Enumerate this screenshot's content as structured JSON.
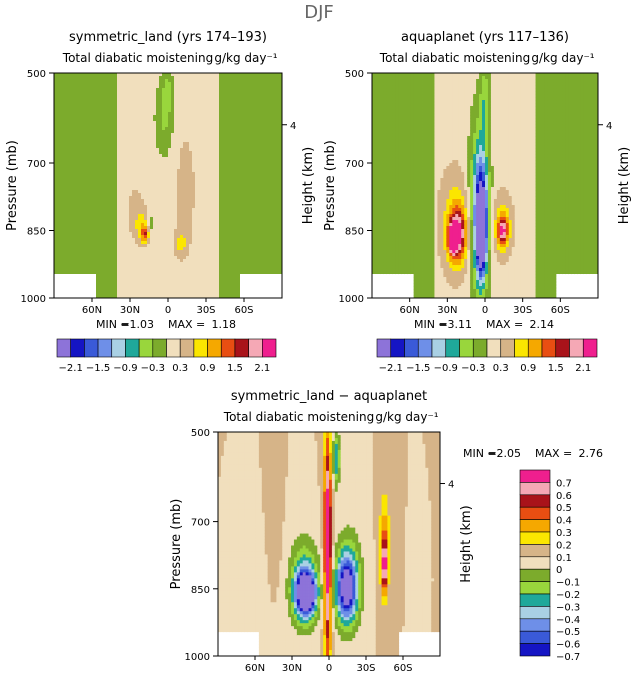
{
  "figure_title": "DJF",
  "chart_data": [
    {
      "type": "heatmap",
      "title": "symmetric_land (yrs 174–193)",
      "subtitle": "Total diabatic moistening",
      "units": "g/kg day⁻¹",
      "ylabel": "Pressure (mb)",
      "y2label": "Height (km)",
      "yticks": [
        "500",
        "700",
        "850",
        "1000"
      ],
      "y2ticks": [
        "4"
      ],
      "xticks": [
        "60N",
        "30N",
        "0",
        "30S",
        "60S"
      ],
      "stats": {
        "min_label": "MIN =",
        "min": "−1.03",
        "max_label": "MAX =",
        "max": "1.18"
      },
      "levels": [
        "−2.1",
        "−1.5",
        "−0.9",
        "−0.3",
        "0.3",
        "0.9",
        "1.5",
        "2.1"
      ],
      "blobs": [
        {
          "x": 26,
          "p": 800,
          "rx": 9,
          "rp": 75,
          "value": 0.2
        },
        {
          "x": 20,
          "p": 840,
          "rx": 6,
          "rp": 35,
          "value": 0.6
        },
        {
          "x": 18,
          "p": 860,
          "rx": 3,
          "rp": 18,
          "value": 1.0
        },
        {
          "x": 14,
          "p": 840,
          "rx": 3,
          "rp": 40,
          "value": -0.4
        },
        {
          "x": -14,
          "p": 760,
          "rx": 8,
          "rp": 130,
          "value": 0.3
        },
        {
          "x": -10,
          "p": 880,
          "rx": 5,
          "rp": 30,
          "value": 0.5
        },
        {
          "x": 3,
          "p": 600,
          "rx": 7,
          "rp": 80,
          "value": -0.5
        },
        {
          "x": 0,
          "p": 540,
          "rx": 4,
          "rp": 40,
          "value": -0.5
        }
      ]
    },
    {
      "type": "heatmap",
      "title": "aquaplanet (yrs 117–136)",
      "subtitle": "Total diabatic moistening",
      "units": "g/kg day⁻¹",
      "ylabel": "Pressure (mb)",
      "y2label": "Height (km)",
      "yticks": [
        "500",
        "700",
        "850",
        "1000"
      ],
      "y2ticks": [
        "4"
      ],
      "xticks": [
        "60N",
        "30N",
        "0",
        "30S",
        "60S"
      ],
      "stats": {
        "min_label": "MIN =",
        "min": "−3.11",
        "max_label": "MAX =",
        "max": "2.14"
      },
      "levels": [
        "−2.1",
        "−1.5",
        "−0.9",
        "−0.3",
        "0.3",
        "0.9",
        "1.5",
        "2.1"
      ],
      "blobs": [
        {
          "x": 24,
          "p": 820,
          "rx": 16,
          "rp": 140,
          "value": 0.3
        },
        {
          "x": 22,
          "p": 850,
          "rx": 9,
          "rp": 80,
          "value": 0.9
        },
        {
          "x": 22,
          "p": 860,
          "rx": 6,
          "rp": 50,
          "value": 1.3
        },
        {
          "x": 26,
          "p": 870,
          "rx": 3,
          "rp": 30,
          "value": 1.8
        },
        {
          "x": -14,
          "p": 840,
          "rx": 8,
          "rp": 70,
          "value": 0.7
        },
        {
          "x": -14,
          "p": 850,
          "rx": 4,
          "rp": 30,
          "value": 1.5
        },
        {
          "x": 5,
          "p": 800,
          "rx": 8,
          "rp": 190,
          "value": -1.0
        },
        {
          "x": 3,
          "p": 820,
          "rx": 5,
          "rp": 130,
          "value": -2.0
        },
        {
          "x": 3,
          "p": 860,
          "rx": 3,
          "rp": 70,
          "value": -2.6
        },
        {
          "x": 0,
          "p": 560,
          "rx": 4,
          "rp": 80,
          "value": -0.6
        }
      ]
    },
    {
      "type": "heatmap",
      "title": "symmetric_land − aquaplanet",
      "subtitle": "Total diabatic moistening",
      "units": "g/kg day⁻¹",
      "ylabel": "Pressure (mb)",
      "y2label": "Height (km)",
      "yticks": [
        "500",
        "700",
        "850",
        "1000"
      ],
      "y2ticks": [
        "4"
      ],
      "xticks": [
        "60N",
        "30N",
        "0",
        "30S",
        "60S"
      ],
      "stats": {
        "min_label": "MIN =",
        "min": "−2.05",
        "max_label": "MAX =",
        "max": "2.76"
      },
      "levels": [
        "0.7",
        "0.6",
        "0.5",
        "0.4",
        "0.3",
        "0.2",
        "0.1",
        "0",
        "−0.1",
        "−0.2",
        "−0.3",
        "−0.4",
        "−0.5",
        "−0.6",
        "−0.7"
      ],
      "blobs": [
        {
          "x": 20,
          "p": 830,
          "rx": 12,
          "rp": 100,
          "value": -0.3
        },
        {
          "x": 20,
          "p": 860,
          "rx": 9,
          "rp": 60,
          "value": -0.5
        },
        {
          "x": 18,
          "p": 860,
          "rx": 7,
          "rp": 40,
          "value": -0.75
        },
        {
          "x": -16,
          "p": 830,
          "rx": 11,
          "rp": 110,
          "value": -0.3
        },
        {
          "x": -14,
          "p": 850,
          "rx": 8,
          "rp": 70,
          "value": -0.75
        },
        {
          "x": -45,
          "p": 760,
          "rx": 4,
          "rp": 110,
          "value": 0.35
        },
        {
          "x": -45,
          "p": 800,
          "rx": 2,
          "rp": 50,
          "value": 0.5
        },
        {
          "x": 1,
          "p": 760,
          "rx": 3,
          "rp": 250,
          "value": 0.8
        },
        {
          "x": -6,
          "p": 560,
          "rx": 3,
          "rp": 60,
          "value": -0.4
        },
        {
          "x": 42,
          "p": 720,
          "rx": 4,
          "rp": 110,
          "value": 0.05
        }
      ]
    }
  ],
  "colors": {
    "palette": [
      "#8d73d9",
      "#1515c4",
      "#3a5ad8",
      "#6e8fe8",
      "#a9d0e4",
      "#1fa89a",
      "#99d63c",
      "#7cab2c",
      "#f1dfbd",
      "#d6b488",
      "#fbe600",
      "#f5a800",
      "#e84e12",
      "#a9131a",
      "#f5a8b5",
      "#ef1f8e"
    ],
    "land": "#ffffff"
  }
}
